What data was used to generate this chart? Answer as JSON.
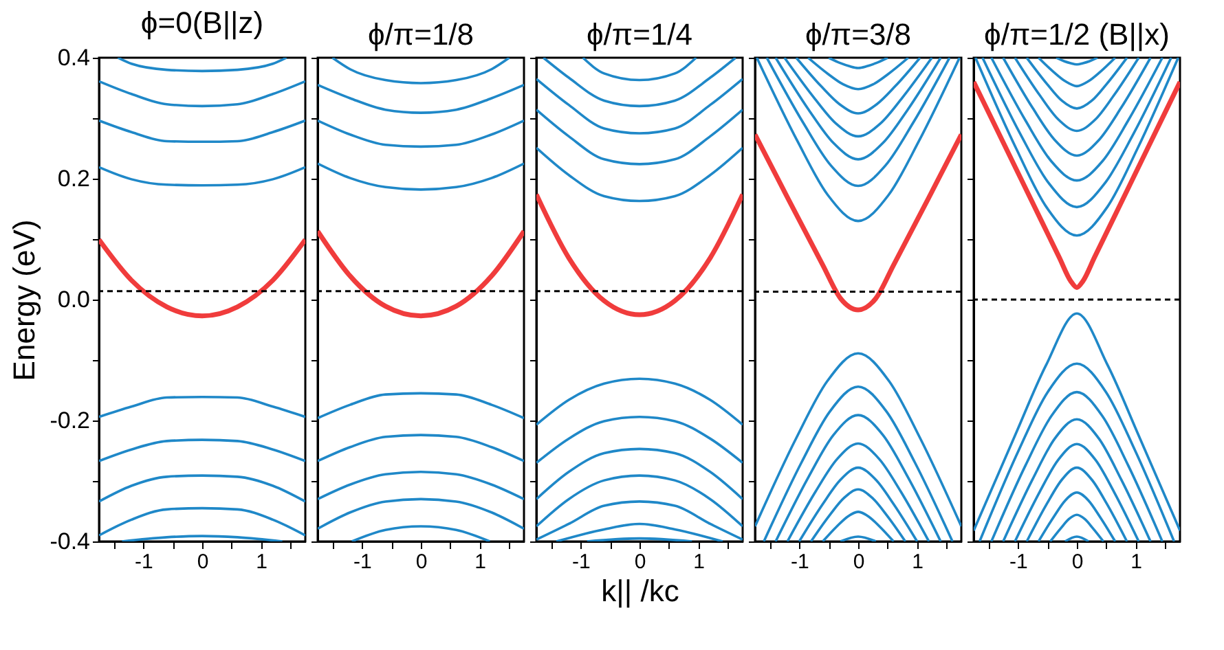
{
  "chart_data": [
    {
      "type": "line",
      "title": "ϕ=0(B||z)",
      "ylabel": "Energy (eV)",
      "xlim": [
        -1.75,
        1.75
      ],
      "xticks": [
        {
          "value": -1.5,
          "label": null
        },
        -1,
        {
          "value": -0.5,
          "label": null
        },
        0,
        {
          "value": 0.5,
          "label": null
        },
        1,
        {
          "value": 1.5,
          "label": null
        }
      ],
      "ylim": [
        -0.4,
        0.4
      ],
      "yticks": [
        -0.4,
        {
          "value": -0.3,
          "label": null
        },
        -0.2,
        {
          "value": -0.1,
          "label": null
        },
        {
          "value": 0,
          "label": "0.0"
        },
        {
          "value": 0.1,
          "label": null
        },
        0.2,
        {
          "value": 0.3,
          "label": null
        },
        0.4
      ],
      "ref_lines": [
        {
          "axis": "y",
          "value": 0.014,
          "line_style": "dashed",
          "color": "#000000"
        }
      ],
      "series": [
        {
          "color": "#1f88c8",
          "x": [
            -1.43,
            -1.2,
            -0.6,
            0,
            0.6,
            1.2,
            1.43
          ],
          "values": [
            0.4,
            0.39,
            0.38,
            0.378,
            0.38,
            0.39,
            0.4
          ]
        },
        {
          "color": "#1f88c8",
          "x": [
            -1.75,
            -1.2,
            -0.6,
            0,
            0.6,
            1.2,
            1.75
          ],
          "values": [
            0.361,
            0.34,
            0.323,
            0.32,
            0.323,
            0.34,
            0.361
          ]
        },
        {
          "color": "#1f88c8",
          "x": [
            -1.75,
            -1.2,
            -0.6,
            0,
            0.6,
            1.2,
            1.75
          ],
          "values": [
            0.296,
            0.277,
            0.262,
            0.261,
            0.262,
            0.277,
            0.296
          ]
        },
        {
          "color": "#1f88c8",
          "x": [
            -1.75,
            -1.2,
            -0.6,
            0,
            0.6,
            1.2,
            1.75
          ],
          "values": [
            0.219,
            0.199,
            0.19,
            0.189,
            0.19,
            0.199,
            0.219
          ]
        },
        {
          "color": "#f03c3c",
          "x": [
            -1.75,
            -1.2,
            -0.6,
            0,
            0.6,
            1.2,
            1.75
          ],
          "values": [
            0.099,
            0.032,
            -0.012,
            -0.027,
            -0.012,
            0.032,
            0.099
          ]
        },
        {
          "color": "#1f88c8",
          "x": [
            -1.75,
            -1.2,
            -0.6,
            0,
            0.6,
            1.2,
            1.75
          ],
          "values": [
            -0.194,
            -0.177,
            -0.162,
            -0.161,
            -0.162,
            -0.177,
            -0.194
          ]
        },
        {
          "color": "#1f88c8",
          "x": [
            -1.75,
            -1.2,
            -0.6,
            0,
            0.6,
            1.2,
            1.75
          ],
          "values": [
            -0.267,
            -0.248,
            -0.234,
            -0.232,
            -0.234,
            -0.248,
            -0.267
          ]
        },
        {
          "color": "#1f88c8",
          "x": [
            -1.75,
            -1.2,
            -0.6,
            0,
            0.6,
            1.2,
            1.75
          ],
          "values": [
            -0.334,
            -0.308,
            -0.293,
            -0.291,
            -0.293,
            -0.308,
            -0.334
          ]
        },
        {
          "color": "#1f88c8",
          "x": [
            -1.75,
            -1.2,
            -0.6,
            0,
            0.6,
            1.2,
            1.75
          ],
          "values": [
            -0.39,
            -0.364,
            -0.347,
            -0.345,
            -0.347,
            -0.364,
            -0.39
          ]
        },
        {
          "color": "#1f88c8",
          "x": [
            -1.36,
            -0.6,
            0,
            0.6,
            1.36
          ],
          "values": [
            -0.4,
            -0.393,
            -0.391,
            -0.393,
            -0.4
          ]
        }
      ]
    },
    {
      "type": "line",
      "title": "ϕ/π=1/8",
      "tick_labels": "x",
      "xlim": [
        -1.75,
        1.75
      ],
      "xticks": [
        {
          "value": -1.5,
          "label": null
        },
        -1,
        {
          "value": -0.5,
          "label": null
        },
        0,
        {
          "value": 0.5,
          "label": null
        },
        1,
        {
          "value": 1.5,
          "label": null
        }
      ],
      "ylim": [
        -0.4,
        0.4
      ],
      "yticks": [
        -0.4,
        -0.3,
        -0.2,
        -0.1,
        0,
        0.1,
        0.2,
        0.3,
        0.4
      ],
      "ref_lines": [
        {
          "axis": "y",
          "value": 0.014,
          "line_style": "dashed",
          "color": "#000000"
        }
      ],
      "series": [
        {
          "color": "#1f88c8",
          "x": [
            -1.5,
            -1.2,
            -0.6,
            0,
            0.6,
            1.2,
            1.5
          ],
          "values": [
            0.4,
            0.381,
            0.363,
            0.358,
            0.363,
            0.381,
            0.4
          ]
        },
        {
          "color": "#1f88c8",
          "x": [
            -1.75,
            -1.2,
            -0.6,
            0,
            0.6,
            1.2,
            1.75
          ],
          "values": [
            0.355,
            0.333,
            0.314,
            0.309,
            0.314,
            0.333,
            0.355
          ]
        },
        {
          "color": "#1f88c8",
          "x": [
            -1.75,
            -1.2,
            -0.6,
            0,
            0.6,
            1.2,
            1.75
          ],
          "values": [
            0.296,
            0.273,
            0.256,
            0.253,
            0.256,
            0.273,
            0.296
          ]
        },
        {
          "color": "#1f88c8",
          "x": [
            -1.75,
            -1.2,
            -0.6,
            0,
            0.6,
            1.2,
            1.75
          ],
          "values": [
            0.225,
            0.201,
            0.186,
            0.182,
            0.186,
            0.201,
            0.225
          ]
        },
        {
          "color": "#f03c3c",
          "x": [
            -1.75,
            -1.2,
            -0.6,
            0,
            0.6,
            1.2,
            1.75
          ],
          "values": [
            0.113,
            0.039,
            -0.011,
            -0.027,
            -0.011,
            0.039,
            0.113
          ]
        },
        {
          "color": "#1f88c8",
          "x": [
            -1.75,
            -1.2,
            -0.6,
            0,
            0.6,
            1.2,
            1.75
          ],
          "values": [
            -0.196,
            -0.174,
            -0.157,
            -0.155,
            -0.157,
            -0.174,
            -0.196
          ]
        },
        {
          "color": "#1f88c8",
          "x": [
            -1.75,
            -1.2,
            -0.6,
            0,
            0.6,
            1.2,
            1.75
          ],
          "values": [
            -0.267,
            -0.244,
            -0.227,
            -0.224,
            -0.227,
            -0.244,
            -0.267
          ]
        },
        {
          "color": "#1f88c8",
          "x": [
            -1.75,
            -1.2,
            -0.6,
            0,
            0.6,
            1.2,
            1.75
          ],
          "values": [
            -0.33,
            -0.306,
            -0.289,
            -0.285,
            -0.289,
            -0.306,
            -0.33
          ]
        },
        {
          "color": "#1f88c8",
          "x": [
            -1.75,
            -1.2,
            -0.6,
            0,
            0.6,
            1.2,
            1.75
          ],
          "values": [
            -0.379,
            -0.352,
            -0.334,
            -0.33,
            -0.334,
            -0.352,
            -0.379
          ]
        },
        {
          "color": "#1f88c8",
          "x": [
            -1.17,
            -0.6,
            0,
            0.6,
            1.17
          ],
          "values": [
            -0.4,
            -0.381,
            -0.375,
            -0.381,
            -0.4
          ]
        }
      ]
    },
    {
      "type": "line",
      "title": "ϕ/π=1/4",
      "xlabel": "k|| /kc",
      "tick_labels": "x",
      "xlim": [
        -1.75,
        1.75
      ],
      "xticks": [
        {
          "value": -1.5,
          "label": null
        },
        -1,
        {
          "value": -0.5,
          "label": null
        },
        0,
        {
          "value": 0.5,
          "label": null
        },
        1,
        {
          "value": 1.5,
          "label": null
        }
      ],
      "ylim": [
        -0.4,
        0.4
      ],
      "yticks": [
        -0.4,
        -0.3,
        -0.2,
        -0.1,
        0,
        0.1,
        0.2,
        0.3,
        0.4
      ],
      "ref_lines": [
        {
          "axis": "y",
          "value": 0.014,
          "line_style": "dashed",
          "color": "#000000"
        }
      ],
      "series": [
        {
          "color": "#1f88c8",
          "x": [
            -0.96,
            -0.6,
            0,
            0.6,
            0.96
          ],
          "values": [
            0.4,
            0.374,
            0.363,
            0.374,
            0.4
          ]
        },
        {
          "color": "#1f88c8",
          "x": [
            -1.63,
            -1.2,
            -0.6,
            0,
            0.6,
            1.2,
            1.63
          ],
          "values": [
            0.4,
            0.367,
            0.329,
            0.32,
            0.329,
            0.367,
            0.4
          ]
        },
        {
          "color": "#1f88c8",
          "x": [
            -1.75,
            -1.2,
            -0.6,
            0,
            0.6,
            1.2,
            1.75
          ],
          "values": [
            0.365,
            0.322,
            0.283,
            0.275,
            0.283,
            0.322,
            0.365
          ]
        },
        {
          "color": "#1f88c8",
          "x": [
            -1.75,
            -1.2,
            -0.6,
            0,
            0.6,
            1.2,
            1.75
          ],
          "values": [
            0.314,
            0.27,
            0.232,
            0.224,
            0.232,
            0.27,
            0.314
          ]
        },
        {
          "color": "#1f88c8",
          "x": [
            -1.75,
            -1.2,
            -0.6,
            0,
            0.6,
            1.2,
            1.75
          ],
          "values": [
            0.251,
            0.206,
            0.171,
            0.163,
            0.171,
            0.206,
            0.251
          ]
        },
        {
          "color": "#f03c3c",
          "x": [
            -1.75,
            -1.2,
            -0.6,
            0,
            0.6,
            1.2,
            1.75
          ],
          "values": [
            0.174,
            0.069,
            -0.002,
            -0.025,
            -0.002,
            0.069,
            0.174
          ]
        },
        {
          "color": "#1f88c8",
          "x": [
            -1.75,
            -1.2,
            -0.6,
            0,
            0.6,
            1.2,
            1.75
          ],
          "values": [
            -0.207,
            -0.166,
            -0.139,
            -0.131,
            -0.139,
            -0.166,
            -0.207
          ]
        },
        {
          "color": "#1f88c8",
          "x": [
            -1.75,
            -1.2,
            -0.6,
            0,
            0.6,
            1.2,
            1.75
          ],
          "values": [
            -0.27,
            -0.23,
            -0.201,
            -0.194,
            -0.201,
            -0.23,
            -0.27
          ]
        },
        {
          "color": "#1f88c8",
          "x": [
            -1.75,
            -1.2,
            -0.6,
            0,
            0.6,
            1.2,
            1.75
          ],
          "values": [
            -0.33,
            -0.285,
            -0.254,
            -0.247,
            -0.254,
            -0.285,
            -0.33
          ]
        },
        {
          "color": "#1f88c8",
          "x": [
            -1.75,
            -1.2,
            -0.6,
            0,
            0.6,
            1.2,
            1.75
          ],
          "values": [
            -0.375,
            -0.33,
            -0.299,
            -0.291,
            -0.299,
            -0.33,
            -0.375
          ]
        },
        {
          "color": "#1f88c8",
          "x": [
            -1.75,
            -1.2,
            -0.6,
            0,
            0.6,
            1.2,
            1.75
          ],
          "values": [
            -0.397,
            -0.371,
            -0.341,
            -0.334,
            -0.341,
            -0.371,
            -0.397
          ]
        },
        {
          "color": "#1f88c8",
          "x": [
            -1.41,
            -0.6,
            0,
            0.6,
            1.41
          ],
          "values": [
            -0.4,
            -0.38,
            -0.371,
            -0.38,
            -0.4
          ]
        },
        {
          "color": "#1f88c8",
          "x": [
            -0.89,
            0,
            0.89
          ],
          "values": [
            -0.4,
            -0.395,
            -0.4
          ]
        }
      ]
    },
    {
      "type": "line",
      "title": "ϕ/π=3/8",
      "tick_labels": "x",
      "xlim": [
        -1.75,
        1.75
      ],
      "xticks": [
        {
          "value": -1.5,
          "label": null
        },
        -1,
        {
          "value": -0.5,
          "label": null
        },
        0,
        {
          "value": 0.5,
          "label": null
        },
        1,
        {
          "value": 1.5,
          "label": null
        }
      ],
      "ylim": [
        -0.4,
        0.4
      ],
      "yticks": [
        -0.4,
        -0.3,
        -0.2,
        -0.1,
        0,
        0.1,
        0.2,
        0.3,
        0.4
      ],
      "ref_lines": [
        {
          "axis": "y",
          "value": 0.013,
          "line_style": "dashed",
          "color": "#000000"
        }
      ],
      "series": [
        {
          "color": "#1f88c8",
          "x": [
            -0.5,
            -0.3,
            -0.15,
            0,
            0.15,
            0.3,
            0.5
          ],
          "values": [
            0.4,
            0.391,
            0.386,
            0.383,
            0.386,
            0.391,
            0.4
          ]
        },
        {
          "color": "#1f88c8",
          "x": [
            -0.85,
            -0.51,
            -0.255,
            0,
            0.255,
            0.51,
            0.85
          ],
          "values": [
            0.4,
            0.373,
            0.356,
            0.348,
            0.356,
            0.373,
            0.4
          ]
        },
        {
          "color": "#1f88c8",
          "x": [
            -1.05,
            -0.63,
            -0.315,
            0,
            0.315,
            0.63,
            1.05
          ],
          "values": [
            0.4,
            0.353,
            0.323,
            0.308,
            0.323,
            0.353,
            0.4
          ]
        },
        {
          "color": "#1f88c8",
          "x": [
            -1.25,
            -0.75,
            -0.375,
            0,
            0.375,
            0.75,
            1.25
          ],
          "values": [
            0.4,
            0.334,
            0.291,
            0.27,
            0.291,
            0.334,
            0.4
          ]
        },
        {
          "color": "#1f88c8",
          "x": [
            -1.4,
            -0.84,
            -0.42,
            0,
            0.42,
            0.84,
            1.4
          ],
          "values": [
            0.4,
            0.314,
            0.259,
            0.232,
            0.259,
            0.314,
            0.4
          ]
        },
        {
          "color": "#1f88c8",
          "x": [
            -1.55,
            -0.93,
            -0.465,
            0,
            0.465,
            0.93,
            1.55
          ],
          "values": [
            0.4,
            0.292,
            0.222,
            0.188,
            0.222,
            0.292,
            0.4
          ]
        },
        {
          "color": "#1f88c8",
          "x": [
            -1.72,
            -1.03,
            -0.516,
            0,
            0.516,
            1.03,
            1.72
          ],
          "values": [
            0.4,
            0.262,
            0.173,
            0.13,
            0.173,
            0.262,
            0.4
          ]
        },
        {
          "color": "#f03c3c",
          "x": [
            -1.75,
            -1.2,
            -0.6,
            -0.3,
            0,
            0.3,
            0.6,
            1.2,
            1.75
          ],
          "values": [
            0.273,
            0.169,
            0.057,
            0.002,
            -0.017,
            0.002,
            0.057,
            0.169,
            0.273
          ]
        },
        {
          "color": "#1f88c8",
          "x": [
            -1.75,
            -1.05,
            -0.525,
            0,
            0.525,
            1.05,
            1.75
          ],
          "values": [
            -0.375,
            -0.229,
            -0.135,
            -0.089,
            -0.135,
            -0.229,
            -0.375
          ]
        },
        {
          "color": "#1f88c8",
          "x": [
            -1.6,
            -0.96,
            -0.48,
            0,
            0.48,
            0.96,
            1.6
          ],
          "values": [
            -0.4,
            -0.269,
            -0.185,
            -0.144,
            -0.185,
            -0.269,
            -0.4
          ]
        },
        {
          "color": "#1f88c8",
          "x": [
            -1.4,
            -0.84,
            -0.42,
            0,
            0.42,
            0.84,
            1.4
          ],
          "values": [
            -0.4,
            -0.293,
            -0.224,
            -0.191,
            -0.224,
            -0.293,
            -0.4
          ]
        },
        {
          "color": "#1f88c8",
          "x": [
            -1.2,
            -0.72,
            -0.36,
            0,
            0.36,
            0.72,
            1.2
          ],
          "values": [
            -0.4,
            -0.317,
            -0.264,
            -0.238,
            -0.264,
            -0.317,
            -0.4
          ]
        },
        {
          "color": "#1f88c8",
          "x": [
            -1,
            -0.6,
            -0.3,
            0,
            0.3,
            0.6,
            1
          ],
          "values": [
            -0.4,
            -0.338,
            -0.298,
            -0.278,
            -0.298,
            -0.338,
            -0.4
          ]
        },
        {
          "color": "#1f88c8",
          "x": [
            -0.8,
            -0.48,
            -0.24,
            0,
            0.24,
            0.48,
            0.8
          ],
          "values": [
            -0.4,
            -0.356,
            -0.328,
            -0.314,
            -0.328,
            -0.356,
            -0.4
          ]
        },
        {
          "color": "#1f88c8",
          "x": [
            -0.6,
            -0.36,
            -0.18,
            0,
            0.18,
            0.36,
            0.6
          ],
          "values": [
            -0.4,
            -0.375,
            -0.359,
            -0.351,
            -0.359,
            -0.375,
            -0.4
          ]
        },
        {
          "color": "#1f88c8",
          "x": [
            -0.3,
            0,
            0.3
          ],
          "values": [
            -0.4,
            -0.392,
            -0.4
          ]
        }
      ]
    },
    {
      "type": "line",
      "title": "ϕ/π=1/2 (B||x)",
      "tick_labels": "x",
      "xlim": [
        -1.75,
        1.75
      ],
      "xticks": [
        {
          "value": -1.5,
          "label": null
        },
        -1,
        {
          "value": -0.5,
          "label": null
        },
        0,
        {
          "value": 0.5,
          "label": null
        },
        1,
        {
          "value": 1.5,
          "label": null
        }
      ],
      "ylim": [
        -0.4,
        0.4
      ],
      "yticks": [
        -0.4,
        -0.3,
        -0.2,
        -0.1,
        0,
        0.1,
        0.2,
        0.3,
        0.4
      ],
      "ref_lines": [
        {
          "axis": "y",
          "value": 0.0,
          "line_style": "dashed",
          "color": "#000000"
        }
      ],
      "series": [
        {
          "color": "#1f88c8",
          "x": [
            -0.35,
            -0.21,
            -0.105,
            0,
            0.105,
            0.21,
            0.35
          ],
          "values": [
            0.4,
            0.394,
            0.391,
            0.389,
            0.391,
            0.394,
            0.4
          ]
        },
        {
          "color": "#1f88c8",
          "x": [
            -0.65,
            -0.39,
            -0.195,
            0,
            0.195,
            0.39,
            0.65
          ],
          "values": [
            0.4,
            0.376,
            0.361,
            0.353,
            0.361,
            0.376,
            0.4
          ]
        },
        {
          "color": "#1f88c8",
          "x": [
            -0.85,
            -0.51,
            -0.255,
            0,
            0.255,
            0.51,
            0.85
          ],
          "values": [
            0.4,
            0.357,
            0.329,
            0.316,
            0.329,
            0.357,
            0.4
          ]
        },
        {
          "color": "#1f88c8",
          "x": [
            -1.05,
            -0.63,
            -0.315,
            0,
            0.315,
            0.63,
            1.05
          ],
          "values": [
            0.4,
            0.338,
            0.298,
            0.279,
            0.298,
            0.338,
            0.4
          ]
        },
        {
          "color": "#1f88c8",
          "x": [
            -1.25,
            -0.75,
            -0.375,
            0,
            0.375,
            0.75,
            1.25
          ],
          "values": [
            0.4,
            0.317,
            0.264,
            0.238,
            0.264,
            0.317,
            0.4
          ]
        },
        {
          "color": "#1f88c8",
          "x": [
            -1.45,
            -0.87,
            -0.435,
            0,
            0.435,
            0.87,
            1.45
          ],
          "values": [
            0.4,
            0.296,
            0.229,
            0.197,
            0.229,
            0.296,
            0.4
          ]
        },
        {
          "color": "#1f88c8",
          "x": [
            -1.6,
            -0.96,
            -0.48,
            0,
            0.48,
            0.96,
            1.6
          ],
          "values": [
            0.4,
            0.274,
            0.193,
            0.153,
            0.193,
            0.274,
            0.4
          ]
        },
        {
          "color": "#1f88c8",
          "x": [
            -1.72,
            -1.03,
            -0.516,
            0,
            0.516,
            1.03,
            1.72
          ],
          "values": [
            0.4,
            0.25,
            0.153,
            0.106,
            0.153,
            0.25,
            0.4
          ]
        },
        {
          "color": "#f03c3c",
          "x": [
            -1.75,
            -1.2,
            -0.6,
            -0.3,
            -0.1,
            0,
            0.1,
            0.3,
            0.6,
            1.2,
            1.75
          ],
          "values": [
            0.36,
            0.25,
            0.13,
            0.07,
            0.03,
            0.02,
            0.03,
            0.07,
            0.13,
            0.25,
            0.36
          ]
        },
        {
          "color": "#1f88c8",
          "x": [
            -1.75,
            -1.05,
            -0.525,
            0,
            0.525,
            1.05,
            1.75
          ],
          "values": [
            -0.382,
            -0.225,
            -0.109,
            -0.023,
            -0.109,
            -0.225,
            -0.382
          ]
        },
        {
          "color": "#1f88c8",
          "x": [
            -1.65,
            -0.99,
            -0.495,
            0,
            0.495,
            0.99,
            1.65
          ],
          "values": [
            -0.4,
            -0.25,
            -0.153,
            -0.106,
            -0.153,
            -0.25,
            -0.4
          ]
        },
        {
          "color": "#1f88c8",
          "x": [
            -1.45,
            -0.87,
            -0.435,
            0,
            0.435,
            0.87,
            1.45
          ],
          "values": [
            -0.4,
            -0.274,
            -0.193,
            -0.153,
            -0.193,
            -0.274,
            -0.4
          ]
        },
        {
          "color": "#1f88c8",
          "x": [
            -1.25,
            -0.75,
            -0.375,
            0,
            0.375,
            0.75,
            1.25
          ],
          "values": [
            -0.4,
            -0.297,
            -0.23,
            -0.198,
            -0.23,
            -0.297,
            -0.4
          ]
        },
        {
          "color": "#1f88c8",
          "x": [
            -1.05,
            -0.63,
            -0.315,
            0,
            0.315,
            0.63,
            1.05
          ],
          "values": [
            -0.4,
            -0.318,
            -0.265,
            -0.239,
            -0.265,
            -0.318,
            -0.4
          ]
        },
        {
          "color": "#1f88c8",
          "x": [
            -0.85,
            -0.51,
            -0.255,
            0,
            0.255,
            0.51,
            0.85
          ],
          "values": [
            -0.4,
            -0.338,
            -0.298,
            -0.278,
            -0.298,
            -0.338,
            -0.4
          ]
        },
        {
          "color": "#1f88c8",
          "x": [
            -0.65,
            -0.39,
            -0.195,
            0,
            0.195,
            0.39,
            0.65
          ],
          "values": [
            -0.4,
            -0.359,
            -0.332,
            -0.319,
            -0.332,
            -0.359,
            -0.4
          ]
        },
        {
          "color": "#1f88c8",
          "x": [
            -0.45,
            -0.27,
            -0.135,
            0,
            0.135,
            0.27,
            0.45
          ],
          "values": [
            -0.4,
            -0.378,
            -0.363,
            -0.356,
            -0.363,
            -0.378,
            -0.4
          ]
        },
        {
          "color": "#1f88c8",
          "x": [
            -0.2,
            0,
            0.2
          ],
          "values": [
            -0.4,
            -0.392,
            -0.4
          ]
        }
      ]
    }
  ]
}
